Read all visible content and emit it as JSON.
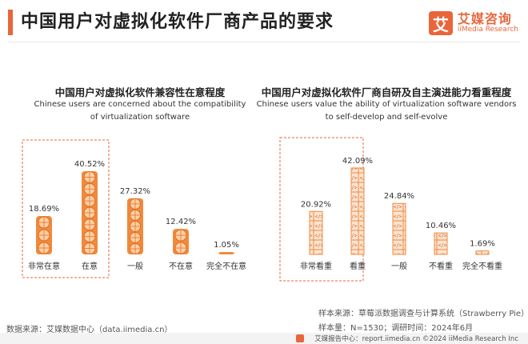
{
  "header": {
    "title": "中国用户对虚拟化软件厂商产品的要求",
    "logo_mark": "艾",
    "logo_cn": "艾媒咨询",
    "logo_en": "iiMedia Research"
  },
  "chart_data": [
    {
      "type": "bar",
      "title": "中国用户对虚拟化软件兼容性在意程度",
      "subtitle": "Chinese users are concerned about the compatibility of virtualization software",
      "categories": [
        "非常在意",
        "在意",
        "一般",
        "不在意",
        "完全不在意"
      ],
      "values": [
        18.69,
        40.52,
        27.32,
        12.42,
        1.05
      ],
      "value_labels": [
        "18.69%",
        "40.52%",
        "27.32%",
        "12.42%",
        "1.05%"
      ],
      "unit": "%",
      "highlighted_categories": [
        "非常在意",
        "在意"
      ],
      "icon": "orange-slice",
      "color": "#f08a3c"
    },
    {
      "type": "bar",
      "title": "中国用户对虚拟化软件厂商自研及自主演进能力看重程度",
      "subtitle": "Chinese users value the ability of virtualization software vendors to self-develop and self-evolve",
      "categories": [
        "非常看重",
        "看重",
        "一般",
        "不看重",
        "完全不看重"
      ],
      "values": [
        20.92,
        42.09,
        24.84,
        10.46,
        1.69
      ],
      "value_labels": [
        "20.92%",
        "42.09%",
        "24.84%",
        "10.46%",
        "1.69%"
      ],
      "unit": "%",
      "highlighted_categories": [
        "非常看重",
        "看重"
      ],
      "icon": "code-block",
      "color": "#f08a3c"
    }
  ],
  "footer": {
    "source": "数据来源：艾媒数据中心（data.iimedia.cn）",
    "sample_source": "样本来源：草莓派数据调查与计算系统（Strawberry Pie）",
    "sample_size": "样本量：N=1530；调研时间：2024年6月",
    "bottom_line": "艾媒报告中心：report.iimedia.cn   ©2024  iiMedia Research  Inc"
  }
}
